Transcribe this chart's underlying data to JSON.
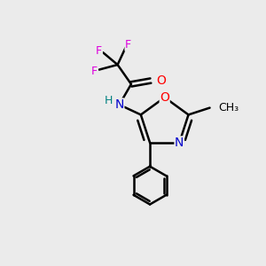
{
  "bg_color": "#ebebeb",
  "atom_colors": {
    "C": "#000000",
    "N": "#0000cc",
    "O": "#ff0000",
    "F": "#dd00dd",
    "H": "#008080"
  },
  "bond_color": "#000000",
  "bond_width": 1.8,
  "figsize": [
    3.0,
    3.0
  ],
  "dpi": 100
}
